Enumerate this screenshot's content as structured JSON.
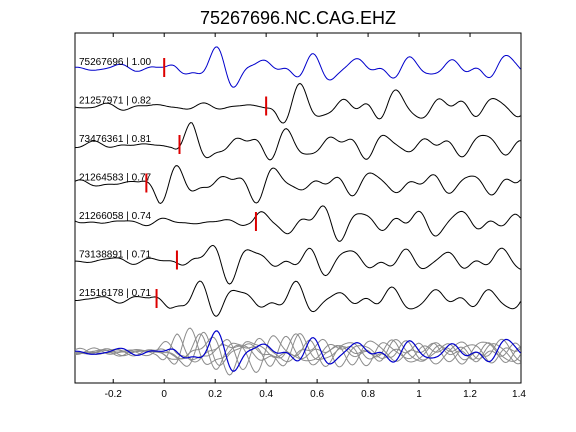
{
  "chart_data": {
    "type": "line",
    "title": "75267696.NC.CAG.EHZ",
    "xlabel": "",
    "ylabel": "",
    "xlim": [
      -0.35,
      1.4
    ],
    "xticks": [
      -0.2,
      0,
      0.2,
      0.4,
      0.6,
      0.8,
      1,
      1.2,
      1.4
    ],
    "xtick_labels": [
      "-0.2",
      "0",
      "0.2",
      "0.4",
      "0.6",
      "0.8",
      "1",
      "1.2",
      "1.4"
    ],
    "grid": false,
    "colors": {
      "master": "#0000cc",
      "trace": "#000000",
      "overlay": "#8c8c8c",
      "pick": "#dd0000"
    },
    "traces": [
      {
        "label": "75267696 | 1.00",
        "pick": 0.0,
        "master": true
      },
      {
        "label": "21257971 | 0.82",
        "pick": 0.4
      },
      {
        "label": "73476361 | 0.81",
        "pick": 0.06
      },
      {
        "label": "21264583 | 0.77",
        "pick": -0.07
      },
      {
        "label": "21266058 | 0.74",
        "pick": 0.36
      },
      {
        "label": "73138891 | 0.71",
        "pick": 0.05
      },
      {
        "label": "21516178 | 0.71",
        "pick": -0.03
      }
    ]
  }
}
